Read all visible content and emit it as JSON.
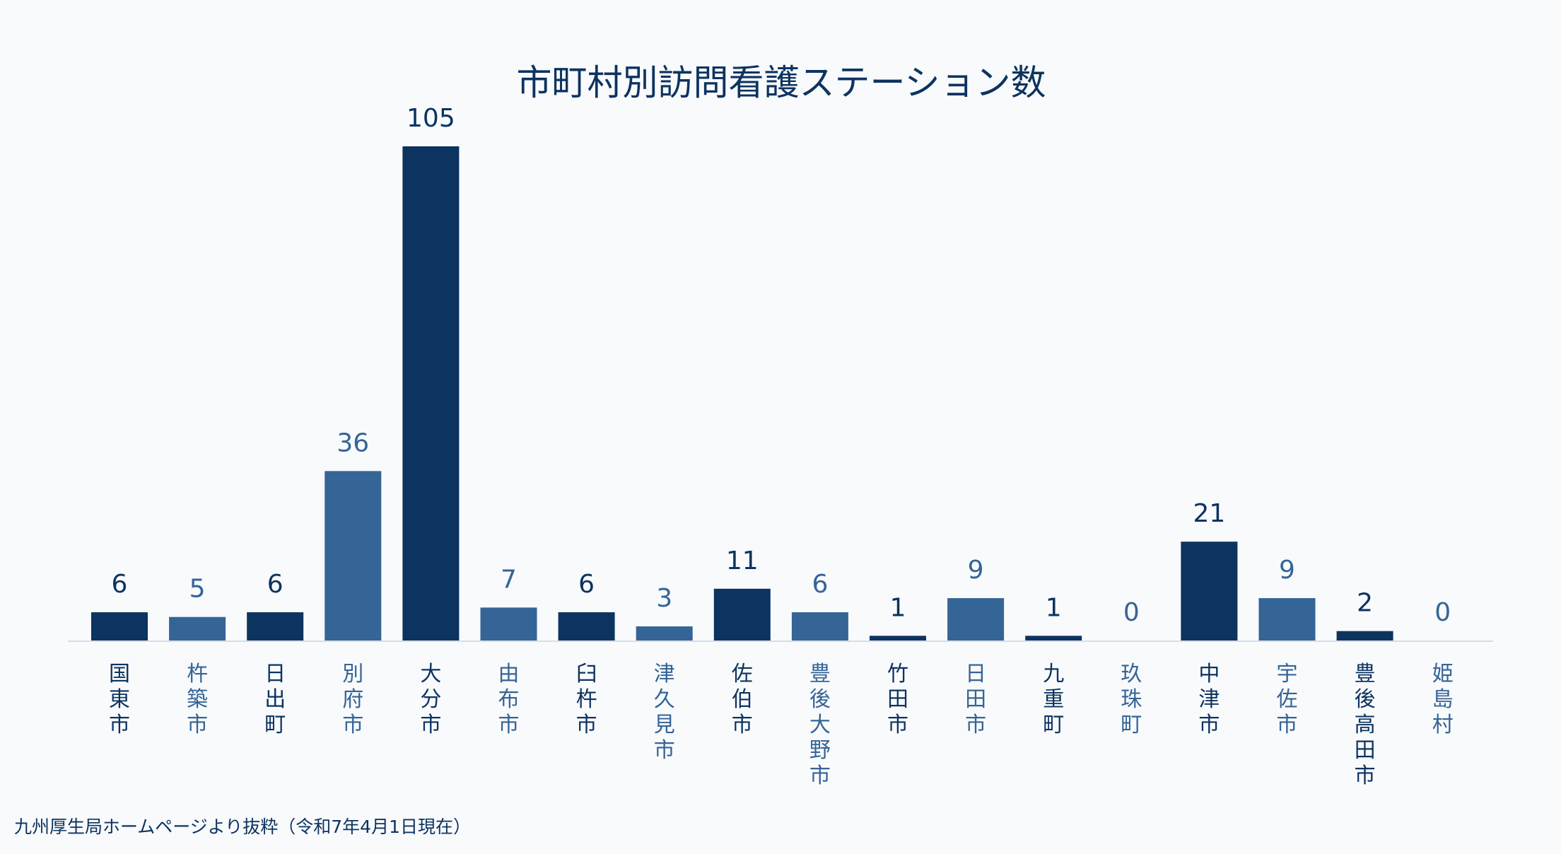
{
  "chart_data": {
    "type": "bar",
    "title": "市町村別訪問看護ステーション数",
    "categories": [
      "国東市",
      "杵築市",
      "日出町",
      "別府市",
      "大分市",
      "由布市",
      "臼杵市",
      "津久見市",
      "佐伯市",
      "豊後大野市",
      "竹田市",
      "日田市",
      "九重町",
      "玖珠町",
      "中津市",
      "宇佐市",
      "豊後高田市",
      "姫島村"
    ],
    "values": [
      6,
      5,
      6,
      36,
      105,
      7,
      6,
      3,
      11,
      6,
      1,
      9,
      1,
      0,
      21,
      9,
      2,
      0
    ],
    "xlabel": "",
    "ylabel": "",
    "ylim": [
      0,
      105
    ],
    "grid": false,
    "legend": "none",
    "data_labels": true,
    "colors": [
      "#0d3360",
      "#356496"
    ],
    "source_note": "九州厚生局ホームページより抜粋（令和7年4月1日現在）"
  }
}
